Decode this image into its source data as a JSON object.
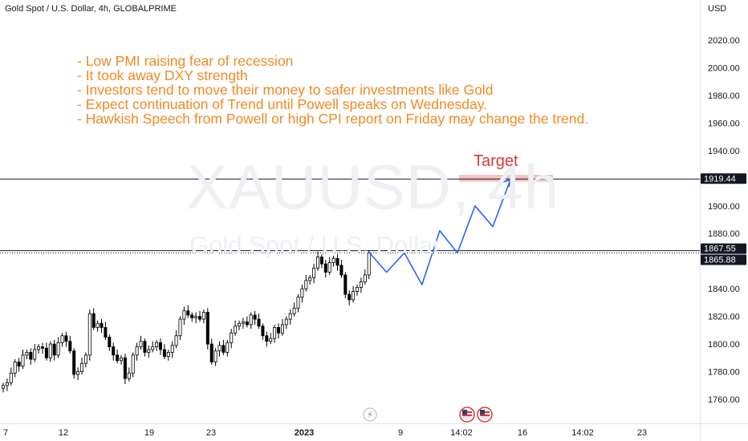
{
  "header": {
    "symbol_title": "Gold Spot / U.S. Dollar, 4h, GLOBALPRIME",
    "currency": "USD"
  },
  "watermark": {
    "ticker": "XAUUSD, 4h",
    "description": "Gold Spot / U.S. Dollar"
  },
  "notes": [
    "- Low PMI raising fear of recession",
    "- It took away DXY strength",
    "- Investors tend to move their money to safer investments like Gold",
    "- Expect continuation of Trend until Powell speaks on Wednesday.",
    "- Hawkish Speech from Powell or high CPI report on Friday may change the trend."
  ],
  "target_label": "Target",
  "colors": {
    "projection": "#2962ff",
    "note_text": "#f08a24",
    "target": "#d73a3a",
    "target_zone": "#f5b7b7",
    "candle": "#000000"
  },
  "chart_data": {
    "type": "candlestick",
    "symbol": "XAUUSD",
    "interval": "4h",
    "ylim": [
      1748,
      2033
    ],
    "y_ticks": [
      1760,
      1780,
      1800,
      1820,
      1840,
      1860,
      1880,
      1900,
      1920,
      1940,
      1960,
      1980,
      2000,
      2020
    ],
    "y_tick_labels": [
      "1760.00",
      "1780.00",
      "1800.00",
      "1820.00",
      "1840.00",
      "1860.00",
      "1880.00",
      "1900.00",
      "1920.00",
      "1940.00",
      "1960.00",
      "1980.00",
      "2000.00",
      "2020.00"
    ],
    "x_tick_labels": [
      "7",
      "12",
      "19",
      "23",
      "2023",
      "9",
      "14:02",
      "16",
      "14:02",
      "23"
    ],
    "horizontal_lines": [
      {
        "name": "target-level",
        "value": 1919.44,
        "label": "1919.44",
        "style": "solid"
      },
      {
        "name": "level-upper",
        "value": 1867.55,
        "label": "1867.55",
        "style": "solid"
      },
      {
        "name": "level-lower",
        "value": 1865.88,
        "label": "1865.88",
        "style": "dotted"
      }
    ],
    "target_zone": [
      1917.5,
      1922.5
    ],
    "candles_close": [
      1770,
      1772,
      1779,
      1787,
      1784,
      1792,
      1794,
      1789,
      1796,
      1798,
      1797,
      1790,
      1800,
      1792,
      1801,
      1806,
      1802,
      1795,
      1778,
      1780,
      1786,
      1792,
      1822,
      1812,
      1815,
      1812,
      1805,
      1798,
      1792,
      1788,
      1790,
      1775,
      1779,
      1792,
      1798,
      1802,
      1794,
      1796,
      1798,
      1801,
      1796,
      1791,
      1794,
      1799,
      1806,
      1818,
      1824,
      1821,
      1819,
      1820,
      1818,
      1823,
      1800,
      1787,
      1795,
      1799,
      1794,
      1801,
      1808,
      1813,
      1815,
      1816,
      1814,
      1821,
      1818,
      1813,
      1806,
      1802,
      1804,
      1812,
      1808,
      1814,
      1818,
      1822,
      1826,
      1834,
      1840,
      1846,
      1848,
      1855,
      1863,
      1858,
      1852,
      1859,
      1862,
      1857,
      1850,
      1836,
      1832,
      1838,
      1841,
      1845,
      1850,
      1866
    ],
    "projection_path": [
      1866.5,
      1852,
      1866,
      1843,
      1882,
      1866,
      1900,
      1885,
      1919
    ]
  }
}
